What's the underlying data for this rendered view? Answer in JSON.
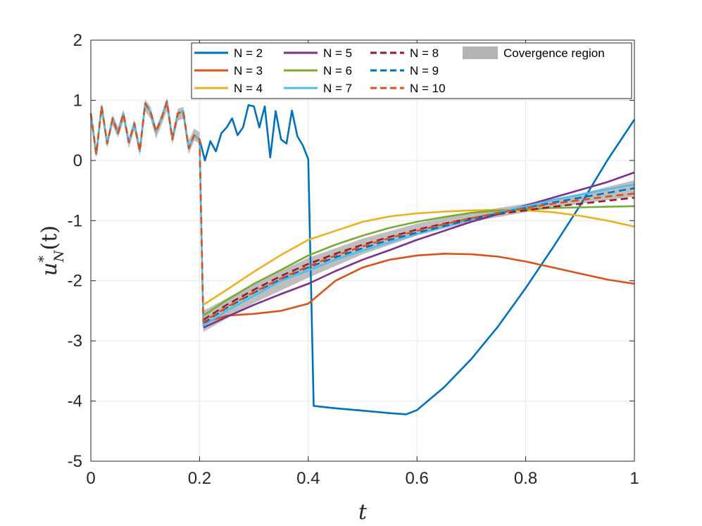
{
  "chart_data": {
    "type": "line",
    "title": "",
    "xlabel": "t",
    "ylabel": "u*_N(t)",
    "ylabel_parts": {
      "base": "u",
      "sup": "*",
      "sub": "N",
      "tail": "(t)"
    },
    "xlim": [
      0,
      1
    ],
    "ylim": [
      -5,
      2
    ],
    "grid": true,
    "xticks": [
      0,
      0.2,
      0.4,
      0.6,
      0.8,
      1
    ],
    "xtick_labels": [
      "0",
      "0.2",
      "0.4",
      "0.6",
      "0.8",
      "1"
    ],
    "yticks": [
      -5,
      -4,
      -3,
      -2,
      -1,
      0,
      1,
      2
    ],
    "ytick_labels": [
      "-5",
      "-4",
      "-3",
      "-2",
      "-1",
      "0",
      "1",
      "2"
    ],
    "legend_position": "top-right",
    "band": {
      "name": "Covergence region",
      "color": "#b3b3b3",
      "upper": [
        [
          0,
          0.84
        ],
        [
          0.01,
          0.19
        ],
        [
          0.02,
          0.96
        ],
        [
          0.03,
          0.35
        ],
        [
          0.04,
          0.76
        ],
        [
          0.05,
          0.56
        ],
        [
          0.06,
          0.85
        ],
        [
          0.07,
          0.37
        ],
        [
          0.08,
          0.69
        ],
        [
          0.09,
          0.26
        ],
        [
          0.1,
          1.02
        ],
        [
          0.11,
          0.89
        ],
        [
          0.12,
          0.55
        ],
        [
          0.13,
          0.77
        ],
        [
          0.14,
          1.05
        ],
        [
          0.15,
          0.46
        ],
        [
          0.16,
          0.86
        ],
        [
          0.17,
          0.89
        ],
        [
          0.18,
          0.33
        ],
        [
          0.19,
          0.53
        ],
        [
          0.2,
          0.47
        ],
        [
          0.207,
          -2.5
        ],
        [
          0.3,
          -2.05
        ],
        [
          0.4,
          -1.62
        ],
        [
          0.5,
          -1.3
        ],
        [
          0.6,
          -1.05
        ],
        [
          0.7,
          -0.86
        ],
        [
          0.8,
          -0.72
        ],
        [
          0.9,
          -0.55
        ],
        [
          1.0,
          -0.33
        ]
      ],
      "lower": [
        [
          0,
          0.62
        ],
        [
          0.01,
          0.05
        ],
        [
          0.02,
          0.78
        ],
        [
          0.03,
          0.2
        ],
        [
          0.04,
          0.58
        ],
        [
          0.05,
          0.38
        ],
        [
          0.06,
          0.65
        ],
        [
          0.07,
          0.2
        ],
        [
          0.08,
          0.5
        ],
        [
          0.09,
          0.08
        ],
        [
          0.1,
          0.82
        ],
        [
          0.11,
          0.69
        ],
        [
          0.12,
          0.36
        ],
        [
          0.13,
          0.59
        ],
        [
          0.14,
          0.82
        ],
        [
          0.15,
          0.26
        ],
        [
          0.16,
          0.66
        ],
        [
          0.17,
          0.69
        ],
        [
          0.18,
          0.1
        ],
        [
          0.19,
          0.33
        ],
        [
          0.2,
          0.28
        ],
        [
          0.207,
          -2.85
        ],
        [
          0.3,
          -2.37
        ],
        [
          0.4,
          -1.95
        ],
        [
          0.5,
          -1.56
        ],
        [
          0.6,
          -1.25
        ],
        [
          0.7,
          -1.02
        ],
        [
          0.8,
          -0.86
        ],
        [
          0.9,
          -0.72
        ],
        [
          1.0,
          -0.6
        ]
      ]
    },
    "series": [
      {
        "name": "N = 2",
        "color": "#0072BD",
        "dash": false,
        "points": [
          [
            0,
            0.78
          ],
          [
            0.01,
            0.1
          ],
          [
            0.02,
            0.9
          ],
          [
            0.03,
            0.28
          ],
          [
            0.04,
            0.7
          ],
          [
            0.05,
            0.45
          ],
          [
            0.06,
            0.78
          ],
          [
            0.07,
            0.3
          ],
          [
            0.08,
            0.62
          ],
          [
            0.09,
            0.15
          ],
          [
            0.1,
            0.95
          ],
          [
            0.11,
            0.8
          ],
          [
            0.12,
            0.48
          ],
          [
            0.13,
            0.7
          ],
          [
            0.14,
            0.98
          ],
          [
            0.15,
            0.35
          ],
          [
            0.16,
            0.78
          ],
          [
            0.17,
            0.82
          ],
          [
            0.18,
            0.2
          ],
          [
            0.19,
            0.42
          ],
          [
            0.2,
            0.35
          ],
          [
            0.21,
            0.0
          ],
          [
            0.22,
            0.32
          ],
          [
            0.23,
            0.15
          ],
          [
            0.24,
            0.45
          ],
          [
            0.25,
            0.55
          ],
          [
            0.26,
            0.7
          ],
          [
            0.27,
            0.42
          ],
          [
            0.28,
            0.55
          ],
          [
            0.29,
            0.92
          ],
          [
            0.3,
            0.9
          ],
          [
            0.31,
            0.55
          ],
          [
            0.32,
            0.9
          ],
          [
            0.33,
            0.05
          ],
          [
            0.34,
            0.82
          ],
          [
            0.35,
            0.35
          ],
          [
            0.36,
            0.28
          ],
          [
            0.37,
            0.83
          ],
          [
            0.38,
            0.4
          ],
          [
            0.39,
            0.25
          ],
          [
            0.4,
            0.02
          ],
          [
            0.41,
            -4.08
          ],
          [
            0.45,
            -4.12
          ],
          [
            0.5,
            -4.16
          ],
          [
            0.55,
            -4.2
          ],
          [
            0.58,
            -4.22
          ],
          [
            0.6,
            -4.15
          ],
          [
            0.65,
            -3.77
          ],
          [
            0.7,
            -3.3
          ],
          [
            0.75,
            -2.75
          ],
          [
            0.8,
            -2.12
          ],
          [
            0.85,
            -1.45
          ],
          [
            0.9,
            -0.75
          ],
          [
            0.95,
            0.0
          ],
          [
            1.0,
            0.68
          ]
        ]
      },
      {
        "name": "N = 3",
        "color": "#D95319",
        "dash": false,
        "points": [
          [
            0.207,
            -2.7
          ],
          [
            0.25,
            -2.58
          ],
          [
            0.3,
            -2.55
          ],
          [
            0.35,
            -2.5
          ],
          [
            0.4,
            -2.38
          ],
          [
            0.45,
            -2.0
          ],
          [
            0.5,
            -1.78
          ],
          [
            0.55,
            -1.65
          ],
          [
            0.6,
            -1.58
          ],
          [
            0.65,
            -1.55
          ],
          [
            0.7,
            -1.56
          ],
          [
            0.75,
            -1.6
          ],
          [
            0.8,
            -1.68
          ],
          [
            0.85,
            -1.78
          ],
          [
            0.9,
            -1.88
          ],
          [
            0.95,
            -1.98
          ],
          [
            1.0,
            -2.05
          ]
        ]
      },
      {
        "name": "N = 4",
        "color": "#EDB120",
        "dash": false,
        "points": [
          [
            0.207,
            -2.4
          ],
          [
            0.25,
            -2.15
          ],
          [
            0.3,
            -1.85
          ],
          [
            0.35,
            -1.57
          ],
          [
            0.4,
            -1.32
          ],
          [
            0.45,
            -1.17
          ],
          [
            0.5,
            -1.02
          ],
          [
            0.55,
            -0.93
          ],
          [
            0.6,
            -0.88
          ],
          [
            0.65,
            -0.85
          ],
          [
            0.7,
            -0.83
          ],
          [
            0.75,
            -0.82
          ],
          [
            0.8,
            -0.83
          ],
          [
            0.85,
            -0.86
          ],
          [
            0.9,
            -0.92
          ],
          [
            0.95,
            -1.0
          ],
          [
            1.0,
            -1.1
          ]
        ]
      },
      {
        "name": "N = 5",
        "color": "#7E2F8E",
        "dash": false,
        "points": [
          [
            0.207,
            -2.78
          ],
          [
            0.25,
            -2.6
          ],
          [
            0.3,
            -2.4
          ],
          [
            0.35,
            -2.22
          ],
          [
            0.4,
            -2.05
          ],
          [
            0.45,
            -1.84
          ],
          [
            0.5,
            -1.65
          ],
          [
            0.55,
            -1.49
          ],
          [
            0.6,
            -1.32
          ],
          [
            0.65,
            -1.17
          ],
          [
            0.7,
            -1.02
          ],
          [
            0.75,
            -0.89
          ],
          [
            0.8,
            -0.75
          ],
          [
            0.85,
            -0.62
          ],
          [
            0.9,
            -0.49
          ],
          [
            0.95,
            -0.36
          ],
          [
            1.0,
            -0.2
          ]
        ]
      },
      {
        "name": "N = 6",
        "color": "#77AC30",
        "dash": false,
        "points": [
          [
            0.207,
            -2.58
          ],
          [
            0.25,
            -2.32
          ],
          [
            0.3,
            -2.05
          ],
          [
            0.35,
            -1.82
          ],
          [
            0.4,
            -1.58
          ],
          [
            0.45,
            -1.4
          ],
          [
            0.5,
            -1.25
          ],
          [
            0.55,
            -1.12
          ],
          [
            0.6,
            -1.02
          ],
          [
            0.65,
            -0.94
          ],
          [
            0.7,
            -0.87
          ],
          [
            0.75,
            -0.83
          ],
          [
            0.8,
            -0.81
          ],
          [
            0.85,
            -0.79
          ],
          [
            0.9,
            -0.78
          ],
          [
            0.95,
            -0.77
          ],
          [
            1.0,
            -0.76
          ]
        ]
      },
      {
        "name": "N = 7",
        "color": "#4DBEEE",
        "dash": false,
        "points": [
          [
            0,
            0.78
          ],
          [
            0.01,
            0.1
          ],
          [
            0.02,
            0.9
          ],
          [
            0.03,
            0.28
          ],
          [
            0.04,
            0.7
          ],
          [
            0.05,
            0.45
          ],
          [
            0.06,
            0.78
          ],
          [
            0.07,
            0.3
          ],
          [
            0.08,
            0.62
          ],
          [
            0.09,
            0.15
          ],
          [
            0.1,
            0.95
          ],
          [
            0.11,
            0.8
          ],
          [
            0.12,
            0.48
          ],
          [
            0.13,
            0.7
          ],
          [
            0.14,
            0.98
          ],
          [
            0.15,
            0.35
          ],
          [
            0.16,
            0.78
          ],
          [
            0.17,
            0.82
          ],
          [
            0.18,
            0.2
          ],
          [
            0.19,
            0.42
          ],
          [
            0.2,
            0.35
          ],
          [
            0.207,
            -2.75
          ],
          [
            0.25,
            -2.5
          ],
          [
            0.3,
            -2.25
          ],
          [
            0.35,
            -2.0
          ],
          [
            0.4,
            -1.83
          ],
          [
            0.45,
            -1.65
          ],
          [
            0.5,
            -1.5
          ],
          [
            0.55,
            -1.36
          ],
          [
            0.6,
            -1.22
          ],
          [
            0.65,
            -1.1
          ],
          [
            0.7,
            -0.98
          ],
          [
            0.75,
            -0.86
          ],
          [
            0.8,
            -0.76
          ],
          [
            0.85,
            -0.66
          ],
          [
            0.9,
            -0.57
          ],
          [
            0.95,
            -0.48
          ],
          [
            1.0,
            -0.4
          ]
        ]
      },
      {
        "name": "N = 8",
        "color": "#A2142F",
        "dash": true,
        "points": [
          [
            0.207,
            -2.65
          ],
          [
            0.25,
            -2.4
          ],
          [
            0.3,
            -2.15
          ],
          [
            0.35,
            -1.92
          ],
          [
            0.4,
            -1.72
          ],
          [
            0.45,
            -1.55
          ],
          [
            0.5,
            -1.4
          ],
          [
            0.55,
            -1.27
          ],
          [
            0.6,
            -1.15
          ],
          [
            0.65,
            -1.05
          ],
          [
            0.7,
            -0.96
          ],
          [
            0.75,
            -0.89
          ],
          [
            0.8,
            -0.83
          ],
          [
            0.85,
            -0.77
          ],
          [
            0.9,
            -0.72
          ],
          [
            0.95,
            -0.67
          ],
          [
            1.0,
            -0.62
          ]
        ]
      },
      {
        "name": "N = 9",
        "color": "#0072BD",
        "dash": true,
        "points": [
          [
            0.207,
            -2.7
          ],
          [
            0.25,
            -2.45
          ],
          [
            0.3,
            -2.2
          ],
          [
            0.35,
            -1.97
          ],
          [
            0.4,
            -1.78
          ],
          [
            0.45,
            -1.61
          ],
          [
            0.5,
            -1.46
          ],
          [
            0.55,
            -1.32
          ],
          [
            0.6,
            -1.2
          ],
          [
            0.65,
            -1.09
          ],
          [
            0.7,
            -0.98
          ],
          [
            0.75,
            -0.88
          ],
          [
            0.8,
            -0.79
          ],
          [
            0.85,
            -0.7
          ],
          [
            0.9,
            -0.62
          ],
          [
            0.95,
            -0.54
          ],
          [
            1.0,
            -0.46
          ]
        ]
      },
      {
        "name": "N = 10",
        "color": "#D95319",
        "dash": true,
        "points": [
          [
            0,
            0.78
          ],
          [
            0.01,
            0.1
          ],
          [
            0.02,
            0.9
          ],
          [
            0.03,
            0.28
          ],
          [
            0.04,
            0.7
          ],
          [
            0.05,
            0.45
          ],
          [
            0.06,
            0.78
          ],
          [
            0.07,
            0.3
          ],
          [
            0.08,
            0.62
          ],
          [
            0.09,
            0.15
          ],
          [
            0.1,
            0.95
          ],
          [
            0.11,
            0.8
          ],
          [
            0.12,
            0.48
          ],
          [
            0.13,
            0.7
          ],
          [
            0.14,
            0.98
          ],
          [
            0.15,
            0.35
          ],
          [
            0.16,
            0.78
          ],
          [
            0.17,
            0.82
          ],
          [
            0.18,
            0.2
          ],
          [
            0.19,
            0.42
          ],
          [
            0.2,
            0.35
          ],
          [
            0.207,
            -2.68
          ],
          [
            0.25,
            -2.44
          ],
          [
            0.3,
            -2.19
          ],
          [
            0.35,
            -1.96
          ],
          [
            0.4,
            -1.76
          ],
          [
            0.45,
            -1.58
          ],
          [
            0.5,
            -1.43
          ],
          [
            0.55,
            -1.29
          ],
          [
            0.6,
            -1.17
          ],
          [
            0.65,
            -1.06
          ],
          [
            0.7,
            -0.96
          ],
          [
            0.75,
            -0.87
          ],
          [
            0.8,
            -0.79
          ],
          [
            0.85,
            -0.72
          ],
          [
            0.9,
            -0.66
          ],
          [
            0.95,
            -0.6
          ],
          [
            1.0,
            -0.55
          ]
        ]
      }
    ]
  }
}
